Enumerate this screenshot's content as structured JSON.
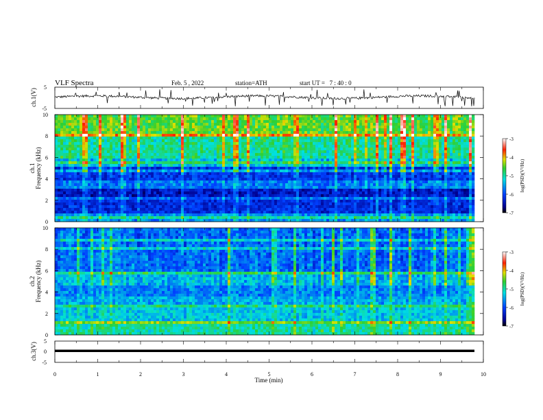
{
  "header": {
    "title": "VLF Spectra",
    "date": "Feb. 5 , 2022",
    "station": "station=ATH",
    "start_ut": "start UT =   7 : 40 : 0"
  },
  "chart_data": [
    {
      "type": "line",
      "name": "ch1-waveform",
      "ylabel": "ch.1(V)",
      "ylim": [
        -5,
        5
      ],
      "yticks": [
        "5",
        "-5"
      ],
      "xlim": [
        0,
        10
      ]
    },
    {
      "type": "heatmap",
      "name": "ch1-spectrogram",
      "ylabel_top": "ch.1",
      "ylabel": "Frequency (kHz)",
      "ylim": [
        0,
        10
      ],
      "yticks": [
        "0",
        "2",
        "4",
        "6",
        "8",
        "10"
      ],
      "xlim": [
        0,
        10
      ],
      "colorbar": {
        "label": "log(PSD)(V²/Hz)",
        "range": [
          -7,
          -3
        ],
        "ticks": [
          "-3",
          "-4",
          "-5",
          "-6",
          "-7"
        ]
      }
    },
    {
      "type": "heatmap",
      "name": "ch2-spectrogram",
      "ylabel_top": "ch.2",
      "ylabel": "Frequency (kHz)",
      "ylim": [
        0,
        10
      ],
      "yticks": [
        "0",
        "2",
        "4",
        "6",
        "8",
        "10"
      ],
      "xlim": [
        0,
        10
      ],
      "colorbar": {
        "label": "log(PSD)(V²/Hz)",
        "range": [
          -7,
          -3
        ],
        "ticks": [
          "-3",
          "-4",
          "-5",
          "-6",
          "-7"
        ]
      }
    },
    {
      "type": "line",
      "name": "ch3-waveform",
      "ylabel": "ch.3(V)",
      "ylim": [
        -5,
        5
      ],
      "yticks": [
        "5",
        "0",
        "-5"
      ],
      "xlim": [
        0,
        10
      ],
      "xticks": [
        "0",
        "1",
        "2",
        "3",
        "4",
        "5",
        "6",
        "7",
        "8",
        "9",
        "10"
      ],
      "xlabel": "Time (min)"
    }
  ]
}
